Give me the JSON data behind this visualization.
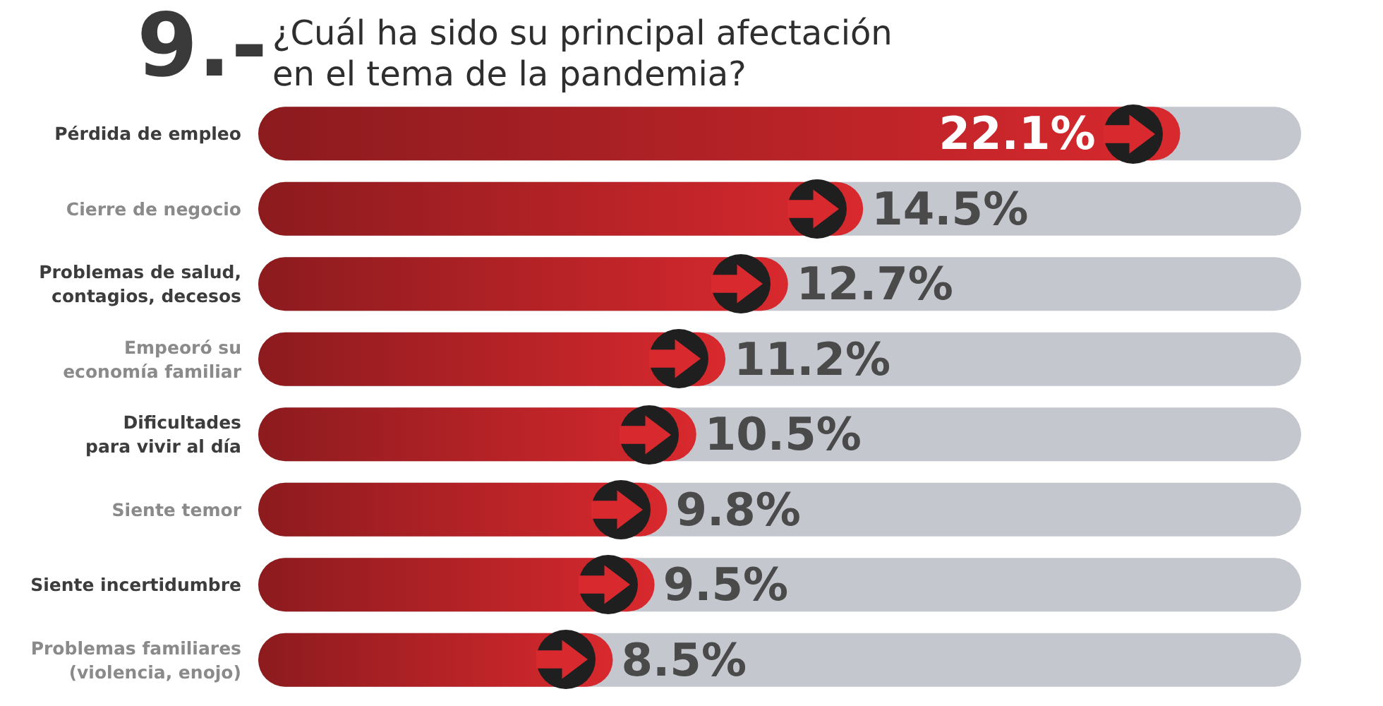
{
  "chart_data": {
    "type": "bar",
    "orientation": "horizontal",
    "title": "9.-",
    "subtitle": "¿Cuál ha sido su principal afectación en el tema de la pandemia?",
    "categories": [
      "Pérdida de empleo",
      "Cierre de negocio",
      "Problemas de salud,\ncontagios, decesos",
      "Empeoró su\neconomía familiar",
      "Dificultades\npara vivir al día",
      "Siente temor",
      "Siente incertidumbre",
      "Problemas familiares\n(violencia, enojo)"
    ],
    "values": [
      22.1,
      14.5,
      12.7,
      11.2,
      10.5,
      9.8,
      9.5,
      8.5
    ],
    "value_labels": [
      "22.1%",
      "14.5%",
      "12.7%",
      "11.2%",
      "10.5%",
      "9.8%",
      "9.5%",
      "8.5%"
    ],
    "color": "#b42226",
    "xlim": [
      0,
      25
    ],
    "tick_labels": "y"
  }
}
